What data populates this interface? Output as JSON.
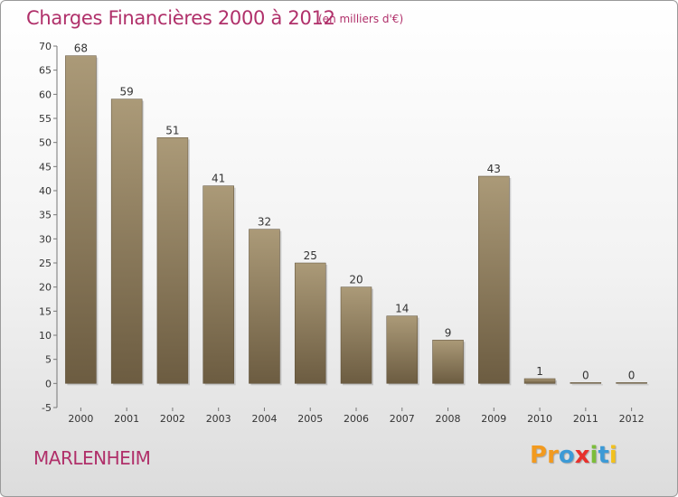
{
  "chart_data": {
    "type": "bar",
    "title": "Charges Financières 2000 à 2012",
    "subtitle": "(en milliers d'€)",
    "categories": [
      "2000",
      "2001",
      "2002",
      "2003",
      "2004",
      "2005",
      "2006",
      "2007",
      "2008",
      "2009",
      "2010",
      "2011",
      "2012"
    ],
    "values": [
      68,
      59,
      51,
      41,
      32,
      25,
      20,
      14,
      9,
      43,
      1,
      0,
      0
    ],
    "ylim": [
      -5,
      70
    ],
    "yticks": [
      -5,
      0,
      5,
      10,
      15,
      20,
      25,
      30,
      35,
      40,
      45,
      50,
      55,
      60,
      65,
      70
    ],
    "grid": false,
    "bar_color": "#8b7a5c",
    "bar_color_light": "#ab9a78",
    "bar_color_dark": "#6c5c41"
  },
  "commune": "MARLENHEIM",
  "logo": {
    "letters": [
      "P",
      "r",
      "o",
      "x",
      "i",
      "t",
      "i"
    ],
    "colors": [
      "#f29a1f",
      "#f29a1f",
      "#3c9ad6",
      "#e8312c",
      "#7cbd3a",
      "#3c9ad6",
      "#f2c11d"
    ]
  }
}
